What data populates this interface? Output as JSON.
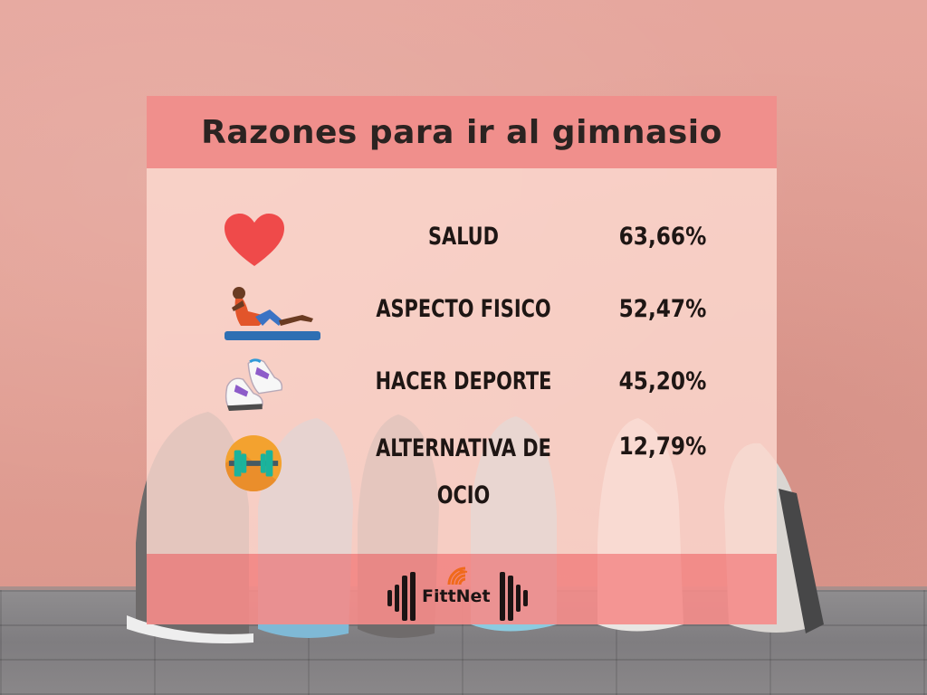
{
  "title": "Razones para ir al gimnasio",
  "reasons": [
    {
      "label": "SALUD",
      "value": "63,66%",
      "icon": "heart-icon"
    },
    {
      "label": "ASPECTO FISICO",
      "value": "52,47%",
      "icon": "sit-up-person-icon"
    },
    {
      "label": "HACER DEPORTE",
      "value": "45,20%",
      "icon": "sneakers-icon"
    },
    {
      "label": "ALTERNATIVA DE OCIO",
      "value": "12,79%",
      "icon": "dumbbell-icon"
    }
  ],
  "brand": {
    "name": "FittNet",
    "icon": "wifi-dumbbell-logo"
  },
  "colors": {
    "header": "#f08f8c",
    "body": "#fcd8ce",
    "footer": "#f58c8a",
    "heart": "#ef4a4a"
  }
}
